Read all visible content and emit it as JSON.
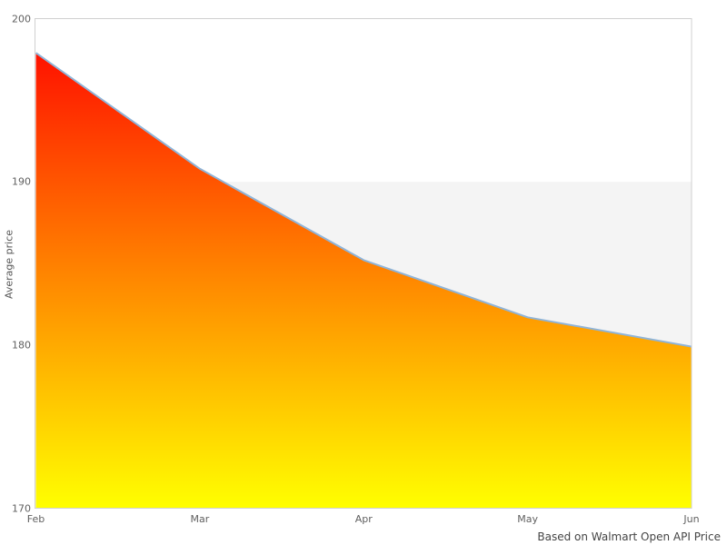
{
  "chart_data": {
    "type": "area",
    "title": "",
    "categories": [
      "Feb",
      "Mar",
      "Apr",
      "May",
      "Jun"
    ],
    "values": [
      197.9,
      190.8,
      185.2,
      181.7,
      179.9
    ],
    "series_name": "Average price",
    "xlabel": "",
    "ylabel": "Average price",
    "ylim": [
      170,
      200
    ],
    "yticks": [
      200,
      190,
      180,
      170
    ],
    "grid": false,
    "legend": false,
    "plot_band": {
      "from": 170,
      "to": 190,
      "color": "#f4f4f4"
    },
    "colors": {
      "area_gradient_top": "#ff0000",
      "area_gradient_bottom": "#ffff00",
      "line": "#8fb4d8",
      "plot_border": "#d0d0d0",
      "tick_text": "#606060",
      "axis_title_text": "#555555",
      "caption_text": "#444444",
      "background": "#ffffff"
    },
    "caption": "Based on Walmart Open API Price"
  }
}
